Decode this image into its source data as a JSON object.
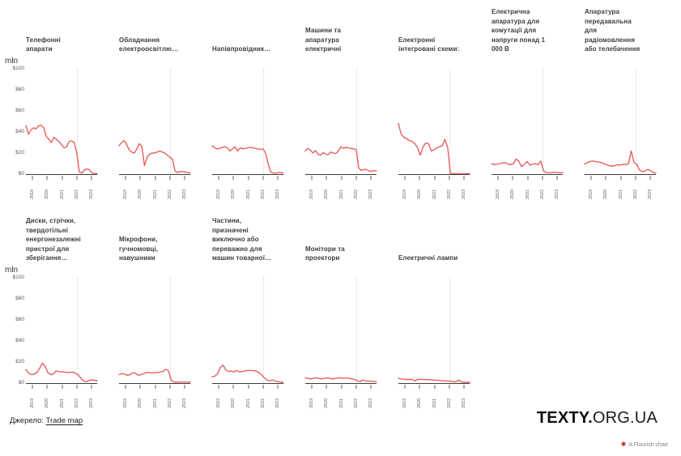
{
  "axis": {
    "unit_label": "mln",
    "y_ticks": [
      "$100",
      "$80",
      "$60",
      "$40",
      "$20",
      "$0"
    ],
    "y_max": 100,
    "x_ticks": [
      "2019",
      "2020",
      "2021",
      "2022",
      "2023"
    ],
    "event_line_at_tick": "2022"
  },
  "colors": {
    "line": "#e4605e",
    "axis": "#3c3c3c",
    "tick": "#b0b0b0",
    "event_line": "#d6d6d6",
    "flourish_icon": "#c41f1f"
  },
  "chart_data": [
    {
      "type": "line",
      "row": 0,
      "title": "Телефонні\nапарати",
      "ylim": [
        0,
        100
      ],
      "values": [
        46,
        38,
        42,
        44,
        43,
        46,
        46.5,
        44,
        36,
        33,
        30,
        35,
        33,
        31,
        28,
        25,
        26,
        31,
        31.5,
        30,
        20,
        2,
        1,
        4,
        5,
        4,
        1,
        0.7,
        0.7
      ]
    },
    {
      "type": "line",
      "row": 0,
      "title": "Обладнання\nелектроосвітлю…",
      "ylim": [
        0,
        100
      ],
      "values": [
        27,
        30,
        32,
        28,
        23,
        21,
        20,
        24,
        29,
        26,
        8,
        16,
        19,
        20,
        20,
        21,
        22,
        21,
        20,
        18,
        16,
        14,
        3,
        1.5,
        2.5,
        2.5,
        2,
        1.5,
        1
      ]
    },
    {
      "type": "line",
      "row": 0,
      "title": "Напівпровідник…",
      "ylim": [
        0,
        100
      ],
      "values": [
        27,
        25,
        24,
        24.5,
        25.5,
        26,
        25,
        22,
        24,
        26,
        22,
        25,
        24,
        24.5,
        25,
        25.5,
        25,
        24.5,
        24,
        23.5,
        24,
        20,
        10,
        2,
        1,
        1,
        1.5,
        1.5,
        1
      ]
    },
    {
      "type": "line",
      "row": 0,
      "title": "Машини та\nапаратура\nелектричні",
      "ylim": [
        0,
        100
      ],
      "values": [
        22,
        24.5,
        23,
        20,
        22.5,
        19,
        18,
        20.5,
        19,
        18.5,
        21,
        20,
        19.5,
        22,
        26,
        24.5,
        25.5,
        25,
        24.5,
        24,
        23.5,
        6,
        3.5,
        4.5,
        4.5,
        3,
        2.5,
        3.5,
        3
      ]
    },
    {
      "type": "line",
      "row": 0,
      "title": "Електронні\nінтегровані схеми:",
      "ylim": [
        0,
        100
      ],
      "values": [
        48,
        38,
        35,
        33.5,
        32,
        31,
        29,
        25,
        18,
        26,
        29.5,
        29,
        22,
        23,
        25,
        26,
        27,
        33,
        25,
        0.5,
        0.4,
        0.4,
        0.4,
        0.4,
        0.4,
        0.4,
        0.4
      ]
    },
    {
      "type": "line",
      "row": 0,
      "title": "Електрична\nапаратура для\nкомутації для\nнапруги понад 1\n000 В",
      "ylim": [
        0,
        100
      ],
      "values": [
        10,
        9,
        9.5,
        10,
        10.5,
        11,
        9.5,
        9,
        10,
        14.5,
        12,
        7,
        9.5,
        12,
        8.5,
        9.5,
        10,
        9,
        12.5,
        3,
        1.5,
        1.2,
        1.5,
        1.8,
        1.5,
        1.2,
        1.5
      ]
    },
    {
      "type": "line",
      "row": 0,
      "title": "Апаратура\nпередавальна\nдля\nрадіомовлення\nабо телебачення",
      "ylim": [
        0,
        100
      ],
      "values": [
        9.5,
        11,
        12,
        12.5,
        12,
        11.5,
        11,
        10,
        9,
        8,
        7.5,
        8,
        9,
        8.5,
        9.5,
        9,
        10,
        22,
        11,
        9.5,
        4,
        2.5,
        3,
        4.5,
        3.5,
        1.5,
        1
      ]
    },
    {
      "type": "line",
      "row": 1,
      "title": "Диски, стрічки,\nтвердотільні\nенергонезалежні\nпристрої для\nзберігання…",
      "ylim": [
        0,
        100
      ],
      "values": [
        13,
        9.5,
        8,
        8.5,
        10,
        14,
        19,
        16,
        10,
        8,
        8.5,
        11.5,
        11,
        10.5,
        10.5,
        10,
        10,
        10.5,
        9.5,
        8,
        5,
        2,
        1.5,
        2.5,
        3,
        2.8,
        2.3
      ]
    },
    {
      "type": "line",
      "row": 1,
      "title": "Мікрофони,\nгучномовці,\nнавушники",
      "ylim": [
        0,
        100
      ],
      "values": [
        8,
        9,
        8.5,
        7.5,
        8,
        10,
        9.5,
        7.5,
        8,
        9,
        10,
        10,
        9.5,
        10,
        10,
        10.5,
        11,
        13,
        12,
        3,
        1,
        0.8,
        1,
        1,
        1,
        1,
        0.8
      ]
    },
    {
      "type": "line",
      "row": 1,
      "title": "Частини,\nпризначені\nвиключно або\nпереважно для\nмашин товарної…",
      "ylim": [
        0,
        100
      ],
      "values": [
        6,
        6.5,
        9,
        15,
        17,
        12.5,
        11,
        11.5,
        10.5,
        12,
        10.5,
        11,
        11.5,
        12,
        12,
        12,
        11.5,
        10,
        8,
        5,
        3,
        2,
        3,
        2,
        1.5,
        1,
        0.8
      ]
    },
    {
      "type": "line",
      "row": 1,
      "title": "Монітори та\nпроектори",
      "ylim": [
        0,
        100
      ],
      "values": [
        5,
        4.5,
        4,
        4.5,
        5,
        4.5,
        4,
        4.5,
        5,
        4.5,
        4,
        4.5,
        5,
        5,
        4.5,
        5,
        4.5,
        4,
        3.5,
        2,
        1.5,
        3,
        2,
        2,
        1.8,
        1.5,
        1.5
      ]
    },
    {
      "type": "line",
      "row": 1,
      "title": "Електричні лампи",
      "ylim": [
        0,
        100
      ],
      "values": [
        4.5,
        4,
        3.8,
        3.5,
        3.5,
        3.6,
        2,
        3.5,
        3.6,
        3.5,
        3.4,
        3.2,
        3,
        3,
        2.8,
        2.5,
        2.2,
        2,
        2,
        1.8,
        1.5,
        1.2,
        3,
        1,
        0.8,
        0.8,
        0.8
      ]
    }
  ],
  "footer": {
    "source_label": "Джерело:",
    "source_link": "Trade map"
  },
  "branding": {
    "logo_bold": "TEXTY.",
    "logo_rest": "ORG.UA",
    "attribution": "A Flourish chart",
    "attribution_icon": "✱"
  }
}
